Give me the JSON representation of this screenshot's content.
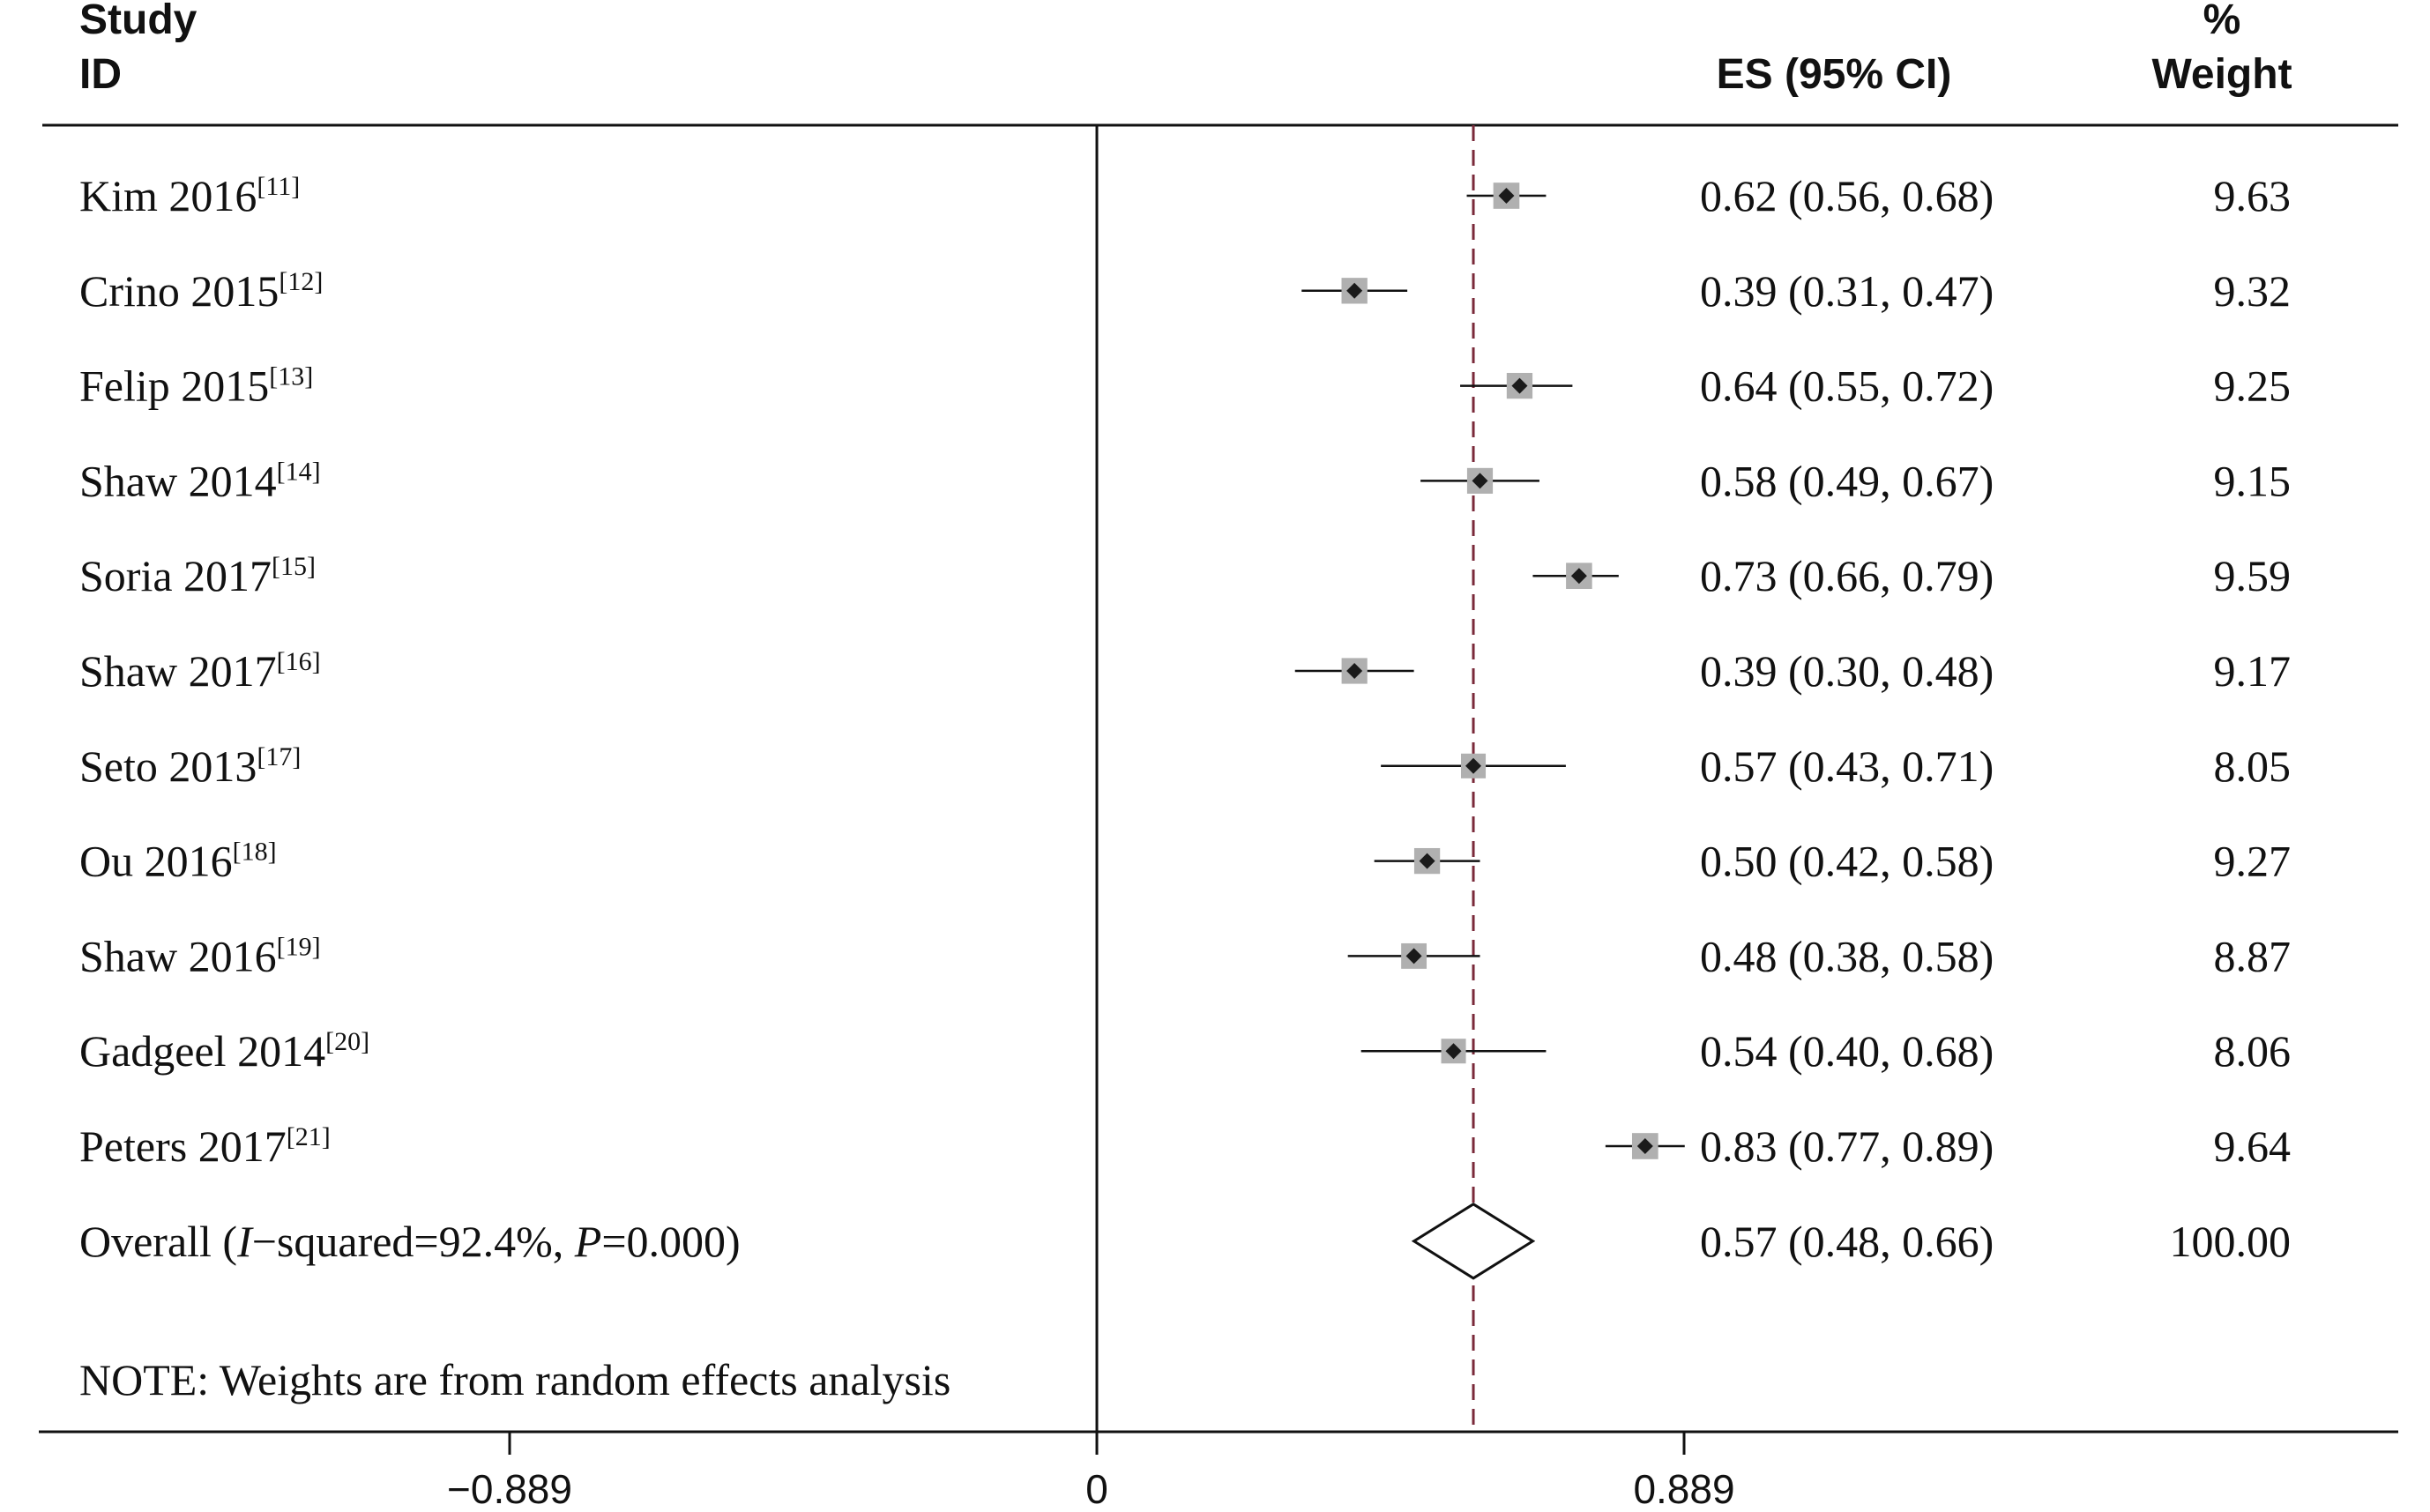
{
  "chart_data": {
    "type": "forest",
    "header": {
      "study_line1": "Study",
      "study_line2": "ID",
      "es": "ES (95% CI)",
      "weight_line1": "%",
      "weight_line2": "Weight"
    },
    "studies": [
      {
        "name": "Kim 2016",
        "ref": "[11]",
        "es": 0.62,
        "lo": 0.56,
        "hi": 0.68,
        "es_label": "0.62 (0.56, 0.68)",
        "weight": "9.63"
      },
      {
        "name": "Crino 2015",
        "ref": "[12]",
        "es": 0.39,
        "lo": 0.31,
        "hi": 0.47,
        "es_label": "0.39 (0.31, 0.47)",
        "weight": "9.32"
      },
      {
        "name": "Felip 2015",
        "ref": "[13]",
        "es": 0.64,
        "lo": 0.55,
        "hi": 0.72,
        "es_label": "0.64 (0.55, 0.72)",
        "weight": "9.25"
      },
      {
        "name": "Shaw 2014",
        "ref": "[14]",
        "es": 0.58,
        "lo": 0.49,
        "hi": 0.67,
        "es_label": "0.58 (0.49, 0.67)",
        "weight": "9.15"
      },
      {
        "name": "Soria 2017",
        "ref": "[15]",
        "es": 0.73,
        "lo": 0.66,
        "hi": 0.79,
        "es_label": "0.73 (0.66, 0.79)",
        "weight": "9.59"
      },
      {
        "name": "Shaw 2017",
        "ref": "[16]",
        "es": 0.39,
        "lo": 0.3,
        "hi": 0.48,
        "es_label": "0.39 (0.30, 0.48)",
        "weight": "9.17"
      },
      {
        "name": "Seto 2013",
        "ref": "[17]",
        "es": 0.57,
        "lo": 0.43,
        "hi": 0.71,
        "es_label": "0.57 (0.43, 0.71)",
        "weight": "8.05"
      },
      {
        "name": "Ou 2016",
        "ref": "[18]",
        "es": 0.5,
        "lo": 0.42,
        "hi": 0.58,
        "es_label": "0.50 (0.42, 0.58)",
        "weight": "9.27"
      },
      {
        "name": "Shaw 2016",
        "ref": "[19]",
        "es": 0.48,
        "lo": 0.38,
        "hi": 0.58,
        "es_label": "0.48 (0.38, 0.58)",
        "weight": "8.87"
      },
      {
        "name": "Gadgeel 2014",
        "ref": "[20]",
        "es": 0.54,
        "lo": 0.4,
        "hi": 0.68,
        "es_label": "0.54 (0.40, 0.68)",
        "weight": "8.06"
      },
      {
        "name": "Peters 2017",
        "ref": "[21]",
        "es": 0.83,
        "lo": 0.77,
        "hi": 0.89,
        "es_label": "0.83 (0.77, 0.89)",
        "weight": "9.64"
      }
    ],
    "overall": {
      "label_prefix": "Overall  (",
      "i2_symbol": "I",
      "i2_text": "−squared=92.4%, ",
      "p_symbol": "P",
      "p_text": "=0.000)",
      "es": 0.57,
      "lo": 0.48,
      "hi": 0.66,
      "es_label": "0.57 (0.48, 0.66)",
      "weight": "100.00"
    },
    "note": "NOTE: Weights are from random effects analysis",
    "x_axis": {
      "ticks": [
        -0.889,
        0,
        0.889
      ],
      "tick_labels": [
        "−0.889",
        "0",
        "0.889"
      ]
    },
    "colors": {
      "reference_line": "#7a2a3a",
      "weight_box": "#b0b0b0",
      "point": "#1a1a1a"
    }
  }
}
